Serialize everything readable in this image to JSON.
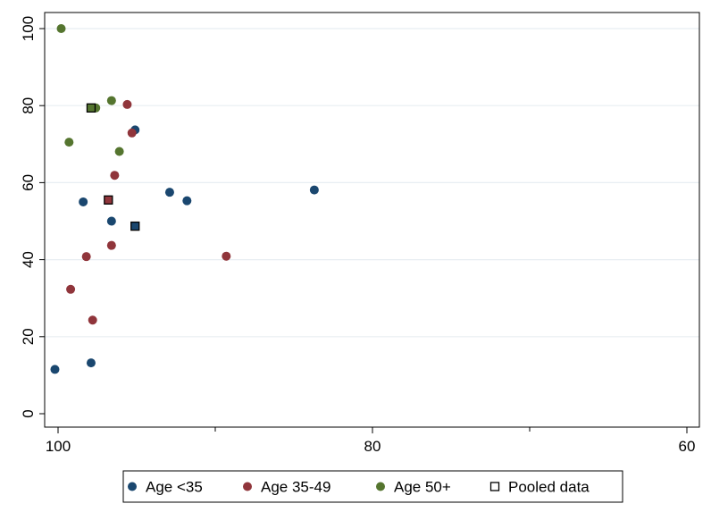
{
  "chart_data": {
    "type": "scatter",
    "title": "",
    "xlabel": "",
    "ylabel": "",
    "xlim": [
      100,
      60
    ],
    "ylim": [
      0,
      100
    ],
    "x_reversed": true,
    "x_ticks": [
      100,
      80,
      60
    ],
    "x_minor_ticks": [
      90,
      70
    ],
    "y_ticks": [
      0,
      20,
      40,
      60,
      80,
      100
    ],
    "grid": "horizontal",
    "legend_position": "bottom",
    "colors": {
      "age_lt35": "#1a476f",
      "age_35_49": "#90353b",
      "age_50plus": "#55752f",
      "pooled_edge": "#000000"
    },
    "series": [
      {
        "name": "Age <35",
        "marker": "circle",
        "color_key": "age_lt35",
        "points": [
          {
            "x": 100.2,
            "y": 11.5
          },
          {
            "x": 97.9,
            "y": 13.2
          },
          {
            "x": 98.4,
            "y": 55.0
          },
          {
            "x": 96.6,
            "y": 50.0
          },
          {
            "x": 95.1,
            "y": 73.7
          },
          {
            "x": 92.9,
            "y": 57.5
          },
          {
            "x": 91.8,
            "y": 55.3
          },
          {
            "x": 83.7,
            "y": 58.1
          }
        ]
      },
      {
        "name": "Age 35-49",
        "marker": "circle",
        "color_key": "age_35_49",
        "points": [
          {
            "x": 99.2,
            "y": 32.3
          },
          {
            "x": 97.8,
            "y": 24.3
          },
          {
            "x": 98.2,
            "y": 40.8
          },
          {
            "x": 96.6,
            "y": 43.7
          },
          {
            "x": 96.4,
            "y": 61.9
          },
          {
            "x": 95.6,
            "y": 80.3
          },
          {
            "x": 95.3,
            "y": 72.9
          },
          {
            "x": 89.3,
            "y": 40.9
          }
        ]
      },
      {
        "name": "Age 50+",
        "marker": "circle",
        "color_key": "age_50plus",
        "points": [
          {
            "x": 99.8,
            "y": 100.0
          },
          {
            "x": 99.3,
            "y": 70.5
          },
          {
            "x": 97.6,
            "y": 79.4
          },
          {
            "x": 96.6,
            "y": 81.3
          },
          {
            "x": 96.1,
            "y": 68.1
          }
        ]
      },
      {
        "name": "Pooled data",
        "marker": "square",
        "fill_by_group": true,
        "points": [
          {
            "x": 97.9,
            "y": 79.4,
            "color_key": "age_50plus"
          },
          {
            "x": 96.8,
            "y": 55.5,
            "color_key": "age_35_49"
          },
          {
            "x": 95.1,
            "y": 48.7,
            "color_key": "age_lt35"
          }
        ]
      }
    ]
  }
}
